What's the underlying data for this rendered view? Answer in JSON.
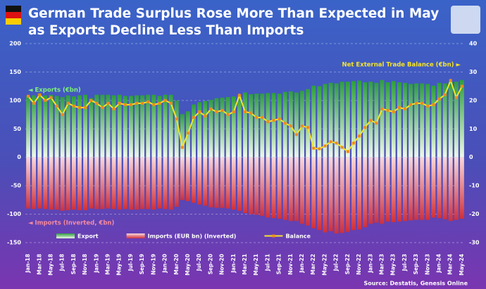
{
  "chart_data": {
    "type": "bar_line",
    "title": [
      "German Trade Surplus Rose More Than Expected in May",
      "as Exports Decline Less Than Imports"
    ],
    "annotations": {
      "exports": "◄ Exports (€bn)",
      "imports": "◄ Imports (Inverted, €bn)",
      "balance": "Net External Trade Balance (€bn) ►"
    },
    "source": "Source: Destatis, Genesis Online",
    "categories": [
      "Jan-18",
      null,
      "Mar-18",
      null,
      "May-18",
      null,
      "Jul-18",
      null,
      "Sep-18",
      null,
      "Nov-18",
      null,
      "Jan-19",
      null,
      "Mar-19",
      null,
      "May-19",
      null,
      "Jul-19",
      null,
      "Sep-19",
      null,
      "Nov-19",
      null,
      "Jan-20",
      null,
      "Mar-20",
      null,
      "May-20",
      null,
      "Jul-20",
      null,
      "Sep-20",
      null,
      "Nov-20",
      null,
      "Jan-21",
      null,
      "Mar-21",
      null,
      "May-21",
      null,
      "Jul-21",
      null,
      "Sep-21",
      null,
      "Nov-21",
      null,
      "Jan-22",
      null,
      "Mar-22",
      null,
      "May-22",
      null,
      "Jul-22",
      null,
      "Sep-22",
      null,
      "Nov-22",
      null,
      "Jan-23",
      null,
      "Mar-23",
      null,
      "May-23",
      null,
      "Jul-23",
      null,
      "Sep-23",
      null,
      "Nov-23",
      null,
      "Jan-24",
      null,
      "Mar-24",
      null,
      "May-24"
    ],
    "series": [
      {
        "name": "Export",
        "color": "#2e9e3e",
        "kind": "bar",
        "values": [
          108,
          109,
          112,
          109,
          110,
          108,
          106,
          109,
          107,
          109,
          110,
          104,
          110,
          110,
          110,
          109,
          110,
          108,
          108,
          109,
          109,
          110,
          110,
          108,
          110,
          110,
          100,
          76,
          81,
          93,
          97,
          99,
          101,
          104,
          105,
          106,
          107,
          109,
          114,
          111,
          112,
          112,
          113,
          113,
          112,
          115,
          116,
          114,
          117,
          120,
          126,
          125,
          129,
          131,
          130,
          133,
          133,
          134,
          135,
          132,
          133,
          131,
          136,
          132,
          134,
          132,
          131,
          129,
          130,
          130,
          129,
          126,
          131,
          130,
          133,
          133,
          136
        ]
      },
      {
        "name": "Imports (EUR bn) (Inverted)",
        "color": "#d0303a",
        "kind": "bar",
        "values": [
          -90,
          -91,
          -90,
          -91,
          -92,
          -92,
          -94,
          -93,
          -92,
          -93,
          -93,
          -90,
          -91,
          -91,
          -90,
          -91,
          -92,
          -91,
          -92,
          -92,
          -91,
          -91,
          -92,
          -90,
          -91,
          -92,
          -87,
          -75,
          -77,
          -80,
          -83,
          -85,
          -88,
          -89,
          -89,
          -90,
          -92,
          -94,
          -98,
          -100,
          -101,
          -103,
          -106,
          -107,
          -108,
          -110,
          -112,
          -112,
          -117,
          -120,
          -125,
          -128,
          -132,
          -130,
          -134,
          -133,
          -131,
          -128,
          -127,
          -123,
          -117,
          -115,
          -117,
          -113,
          -114,
          -113,
          -112,
          -111,
          -110,
          -110,
          -110,
          -106,
          -107,
          -109,
          -112,
          -110,
          -108
        ]
      },
      {
        "name": "Balance",
        "color": "#f5e42a",
        "marker_color": "#f08a1c",
        "kind": "line",
        "axis": "y2",
        "values": [
          21.5,
          19,
          22,
          20,
          21,
          18,
          15,
          19,
          18,
          17.5,
          17.5,
          20,
          19,
          17.5,
          19,
          17,
          19,
          18.5,
          18.5,
          19,
          19,
          19.5,
          18.5,
          19,
          20,
          19,
          13.5,
          3.5,
          8.5,
          14,
          16,
          14.5,
          17,
          16,
          16.5,
          15,
          16,
          21.8,
          16,
          15.6,
          14,
          14,
          12.5,
          13,
          13.5,
          12,
          11,
          8,
          11,
          10.5,
          3.2,
          3,
          4,
          5.5,
          5,
          3.5,
          2,
          5,
          7.5,
          10.5,
          13,
          12,
          17,
          16.5,
          16,
          17.5,
          17,
          18.5,
          19,
          19,
          18,
          18.5,
          20.5,
          22,
          27,
          21,
          25
        ]
      }
    ],
    "ylim": [
      -150,
      200
    ],
    "yticks": [
      -150,
      -100,
      -50,
      0,
      50,
      100,
      150,
      200
    ],
    "y2lim": [
      -30,
      40
    ],
    "y2ticks": [
      -30,
      -20,
      -10,
      0,
      10,
      20,
      30,
      40
    ],
    "grid": true
  }
}
